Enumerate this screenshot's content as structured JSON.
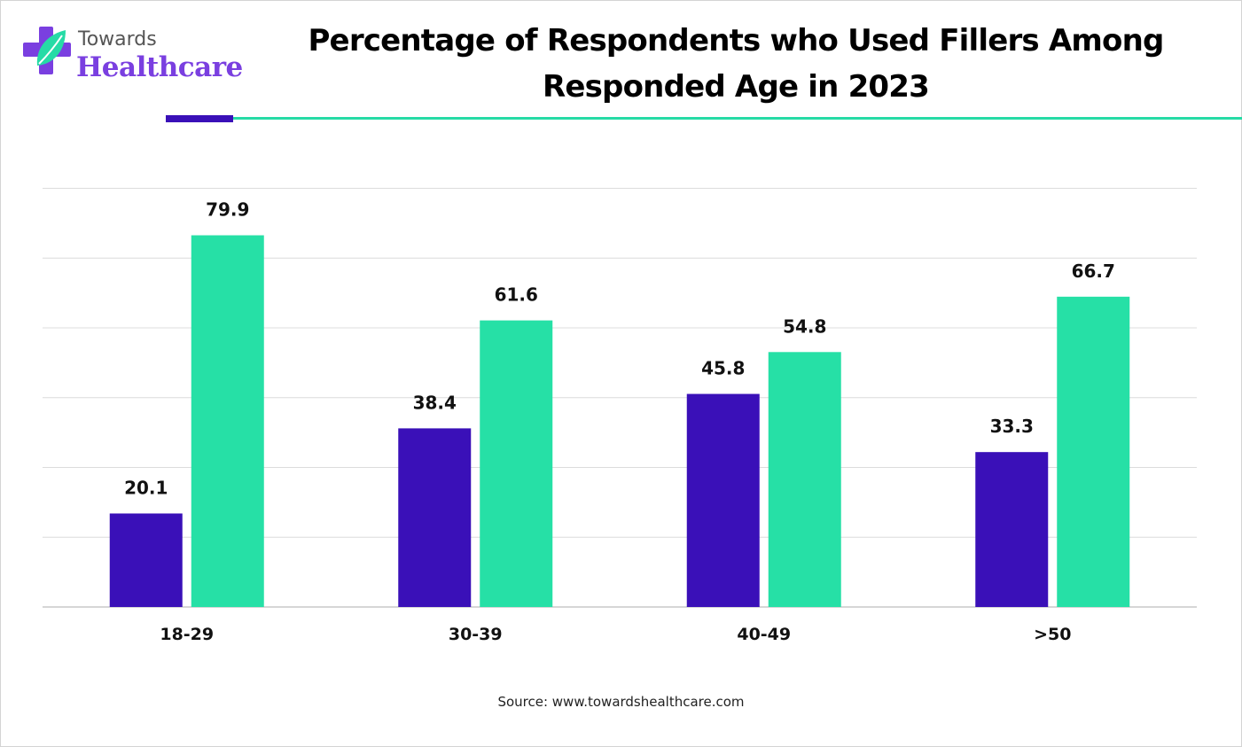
{
  "logo": {
    "word1": "Towards",
    "word2": "Healthcare",
    "colors": {
      "primary": "#7a3fe0",
      "leaf": "#26dba6"
    }
  },
  "colors": {
    "series1": "#3a10b8",
    "series2": "#26e0a6",
    "accent_dark": "#3a10b8",
    "accent_light": "#26dba6"
  },
  "source": "Source: www.towardshealthcare.com",
  "chart_data": {
    "type": "bar",
    "title": "Percentage of Respondents who Used Fillers Among Responded Age in 2023",
    "xlabel": "",
    "ylabel": "",
    "categories": [
      "18-29",
      "30-39",
      "40-49",
      ">50"
    ],
    "series": [
      {
        "values": [
          20.1,
          38.4,
          45.8,
          33.3
        ],
        "color": "#3a10b8"
      },
      {
        "values": [
          79.9,
          61.6,
          54.8,
          66.7
        ],
        "color": "#26e0a6"
      }
    ],
    "ylim": [
      0,
      100
    ],
    "grid": true,
    "legend": "none"
  }
}
